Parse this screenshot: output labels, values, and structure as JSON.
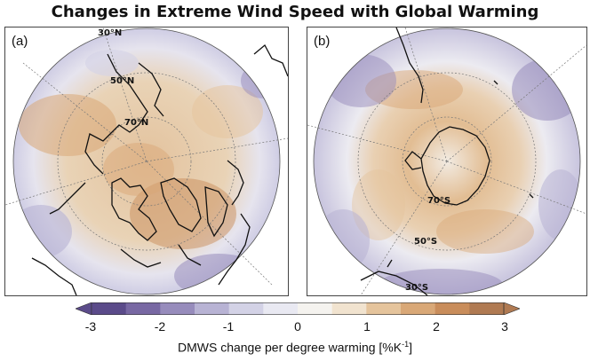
{
  "title": "Changes in Extreme Wind Speed with Global Warming",
  "panel_a": {
    "label": "(a)",
    "lat_labels": [
      "30°N",
      "50°N",
      "70°N"
    ]
  },
  "panel_b": {
    "label": "(b)",
    "lat_labels": [
      "70°S",
      "50°S",
      "30°S"
    ]
  },
  "colorbar": {
    "ticks": [
      "-3",
      "-2",
      "-1",
      "0",
      "1",
      "2",
      "3"
    ],
    "label_main": "DMWS change per degree warming [%K",
    "label_sup": "-1",
    "label_end": "]",
    "colors": [
      "#5b4b8a",
      "#7868a3",
      "#978cbc",
      "#b8b3d4",
      "#d3d2e6",
      "#e9e9f2",
      "#f5f3ef",
      "#f1e3cf",
      "#e5c49c",
      "#d9a877",
      "#c98d5b",
      "#b07a52"
    ]
  }
}
